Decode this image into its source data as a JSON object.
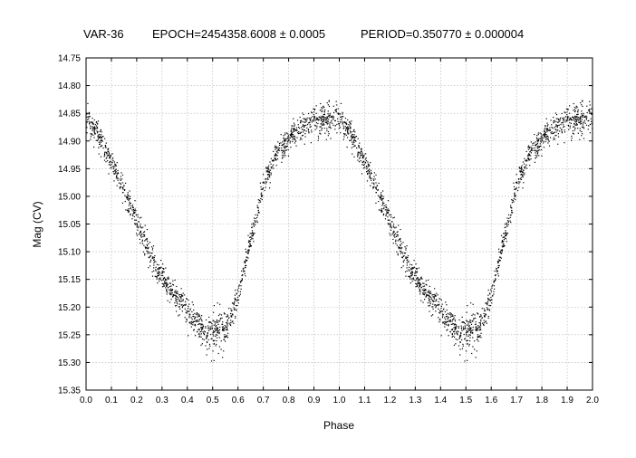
{
  "chart_data": {
    "type": "scatter",
    "title_parts": {
      "star": "VAR-36",
      "epoch": "EPOCH=2454358.6008 ± 0.0005",
      "period": "PERIOD=0.350770 ± 0.000004"
    },
    "xlabel": "Phase",
    "ylabel": "Mag (CV)",
    "xlim": [
      0.0,
      2.0
    ],
    "ylim": [
      14.75,
      15.35
    ],
    "y_inverted": true,
    "grid": true,
    "x_ticks": [
      "0.0",
      "0.1",
      "0.2",
      "0.3",
      "0.4",
      "0.5",
      "0.6",
      "0.7",
      "0.8",
      "0.9",
      "1.0",
      "1.1",
      "1.2",
      "1.3",
      "1.4",
      "1.5",
      "1.6",
      "1.7",
      "1.8",
      "1.9",
      "2.0"
    ],
    "y_ticks": [
      "14.75",
      "14.80",
      "14.85",
      "14.90",
      "14.95",
      "15.00",
      "15.05",
      "15.10",
      "15.15",
      "15.20",
      "15.25",
      "15.30",
      "15.35"
    ],
    "point_color": "#000000",
    "series": [
      {
        "phase": [
          0.0,
          0.02,
          0.04,
          0.06,
          0.08,
          0.1,
          0.12,
          0.14,
          0.16,
          0.18,
          0.2,
          0.22,
          0.24,
          0.26,
          0.28,
          0.3,
          0.32,
          0.34,
          0.36,
          0.38,
          0.4,
          0.42,
          0.44,
          0.46,
          0.48,
          0.5,
          0.52,
          0.54,
          0.56,
          0.58,
          0.6,
          0.62,
          0.64,
          0.66,
          0.68,
          0.7,
          0.72,
          0.74,
          0.76,
          0.78,
          0.8,
          0.82,
          0.84,
          0.86,
          0.88,
          0.9,
          0.92,
          0.94,
          0.96,
          0.98,
          1.0
        ],
        "mag": [
          14.86,
          14.87,
          14.88,
          14.9,
          14.92,
          14.94,
          14.96,
          14.98,
          15.0,
          15.02,
          15.05,
          15.07,
          15.09,
          15.11,
          15.13,
          15.14,
          15.16,
          15.17,
          15.18,
          15.19,
          15.21,
          15.22,
          15.23,
          15.24,
          15.25,
          15.25,
          15.24,
          15.24,
          15.23,
          15.21,
          15.18,
          15.14,
          15.1,
          15.06,
          15.02,
          14.98,
          14.96,
          14.94,
          14.92,
          14.91,
          14.9,
          14.88,
          14.88,
          14.87,
          14.87,
          14.86,
          14.86,
          14.86,
          14.86,
          14.85,
          14.86
        ],
        "scatter": [
          0.012,
          0.012,
          0.012,
          0.012,
          0.012,
          0.012,
          0.012,
          0.012,
          0.012,
          0.012,
          0.012,
          0.012,
          0.012,
          0.012,
          0.012,
          0.012,
          0.012,
          0.012,
          0.012,
          0.012,
          0.012,
          0.012,
          0.012,
          0.015,
          0.018,
          0.02,
          0.02,
          0.018,
          0.015,
          0.012,
          0.01,
          0.01,
          0.01,
          0.01,
          0.01,
          0.01,
          0.01,
          0.01,
          0.01,
          0.01,
          0.012,
          0.012,
          0.012,
          0.012,
          0.012,
          0.014,
          0.015,
          0.015,
          0.015,
          0.014,
          0.013
        ]
      }
    ]
  }
}
